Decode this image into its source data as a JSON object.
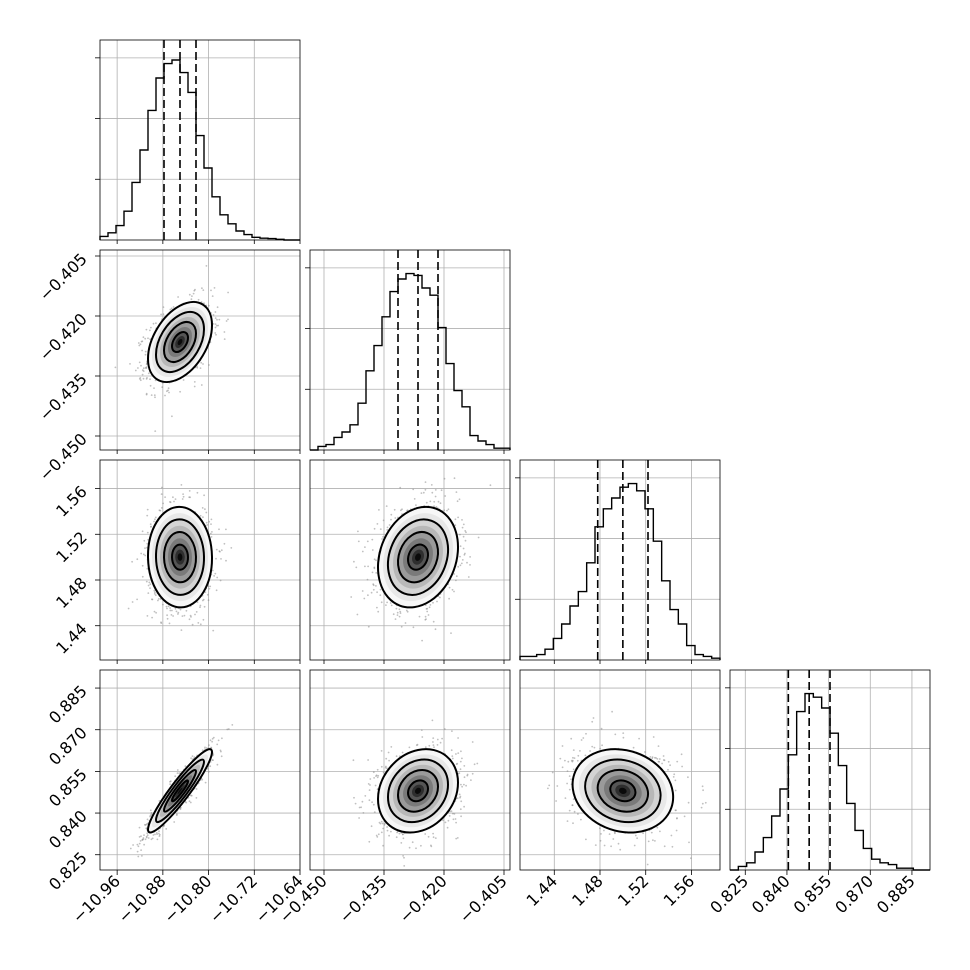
{
  "chart_data": {
    "type": "corner",
    "parameters": [
      {
        "median": -10.85,
        "q16": -10.878,
        "q84": -10.822,
        "range": [
          -10.99,
          -10.64
        ],
        "ticks": [
          -10.96,
          -10.88,
          -10.8,
          -10.72,
          -10.64
        ],
        "tick_labels": [
          "−10.96",
          "−10.88",
          "−10.80",
          "−10.72",
          "−10.64"
        ],
        "hist": [
          0.02,
          0.04,
          0.08,
          0.16,
          0.32,
          0.5,
          0.72,
          0.9,
          0.98,
          1.0,
          0.93,
          0.82,
          0.58,
          0.4,
          0.24,
          0.14,
          0.09,
          0.05,
          0.03,
          0.015,
          0.01,
          0.008,
          0.004,
          0.0,
          0.0
        ]
      },
      {
        "median": -0.4265,
        "q16": -0.4315,
        "q84": -0.4215,
        "range": [
          -0.4535,
          -0.4035
        ],
        "ticks": [
          -0.45,
          -0.435,
          -0.42,
          -0.405
        ],
        "tick_labels": [
          "−0.450",
          "−0.435",
          "−0.420",
          "−0.405"
        ],
        "hist": [
          0.0,
          0.02,
          0.03,
          0.07,
          0.1,
          0.14,
          0.26,
          0.44,
          0.58,
          0.74,
          0.88,
          0.95,
          0.98,
          0.97,
          0.9,
          0.86,
          0.68,
          0.48,
          0.33,
          0.24,
          0.08,
          0.05,
          0.03,
          0.01,
          0.01
        ]
      },
      {
        "median": 1.5,
        "q16": 1.478,
        "q84": 1.522,
        "range": [
          1.41,
          1.585
        ],
        "ticks": [
          1.44,
          1.48,
          1.52,
          1.56
        ],
        "tick_labels": [
          "1.44",
          "1.48",
          "1.52",
          "1.56"
        ],
        "hist": [
          0.02,
          0.02,
          0.03,
          0.06,
          0.12,
          0.2,
          0.3,
          0.38,
          0.54,
          0.74,
          0.84,
          0.9,
          0.96,
          0.98,
          0.94,
          0.84,
          0.66,
          0.44,
          0.28,
          0.2,
          0.08,
          0.03,
          0.02,
          0.01
        ]
      },
      {
        "median": 0.848,
        "q16": 0.8405,
        "q84": 0.8555,
        "range": [
          0.8195,
          0.8915
        ],
        "ticks": [
          0.825,
          0.84,
          0.855,
          0.87,
          0.885
        ],
        "tick_labels": [
          "0.825",
          "0.840",
          "0.855",
          "0.870",
          "0.885"
        ],
        "hist": [
          0.0,
          0.02,
          0.04,
          0.1,
          0.18,
          0.3,
          0.45,
          0.64,
          0.88,
          0.98,
          0.96,
          0.9,
          0.76,
          0.58,
          0.37,
          0.22,
          0.12,
          0.06,
          0.04,
          0.03,
          0.01,
          0.01,
          0.0,
          0.0
        ]
      }
    ],
    "pairs": [
      {
        "col": 0,
        "row": 1,
        "rho": 0.42
      },
      {
        "col": 0,
        "row": 2,
        "rho": -0.02
      },
      {
        "col": 1,
        "row": 2,
        "rho": 0.2
      },
      {
        "col": 0,
        "row": 3,
        "rho": 0.93
      },
      {
        "col": 1,
        "row": 3,
        "rho": 0.2
      },
      {
        "col": 2,
        "row": 3,
        "rho": -0.15
      }
    ],
    "histogram_tick_fractions": [
      0.33,
      0.66,
      0.99
    ],
    "quantiles": [
      0.16,
      0.5,
      0.84
    ],
    "contour_levels_sigma": [
      0.5,
      1.0,
      1.5,
      2.0
    ],
    "grid": true,
    "xlabel": "",
    "ylabel": "",
    "title": ""
  }
}
